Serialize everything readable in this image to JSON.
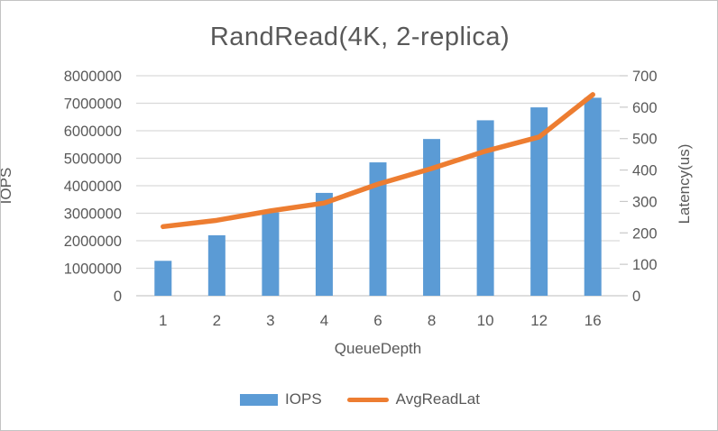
{
  "window": {
    "background": "#ffffff",
    "border_color": "#c3c3c3"
  },
  "chart_data": {
    "type": "bar",
    "subtype": "bar+line combo, dual axis",
    "title": "RandRead(4K, 2-replica)",
    "categories": [
      "1",
      "2",
      "3",
      "4",
      "6",
      "8",
      "10",
      "12",
      "16"
    ],
    "series": [
      {
        "name": "IOPS",
        "type": "bar",
        "axis": "left",
        "color": "#5B9BD5",
        "values": [
          1270000,
          2200000,
          3030000,
          3740000,
          4850000,
          5700000,
          6380000,
          6850000,
          7200000
        ]
      },
      {
        "name": "AvgReadLat",
        "type": "line",
        "axis": "right",
        "color": "#ED7D31",
        "values": [
          220,
          240,
          270,
          295,
          355,
          405,
          460,
          505,
          640
        ]
      }
    ],
    "x_axis": {
      "title": "QueueDepth"
    },
    "left_axis": {
      "title": "IOPS",
      "min": 0,
      "max": 8000000,
      "step": 1000000
    },
    "right_axis": {
      "title": "Latency(us)",
      "min": 0,
      "max": 700,
      "step": 100
    },
    "grid": true,
    "legend_position": "bottom"
  },
  "legend": {
    "items": [
      {
        "label": "IOPS",
        "marker": "bar-swatch",
        "color": "#5B9BD5"
      },
      {
        "label": "AvgReadLat",
        "marker": "line-swatch",
        "color": "#ED7D31"
      }
    ]
  },
  "colors": {
    "grid": "#D9D9D9",
    "baseline": "#C9C9C9",
    "tick": "#C9C9C9",
    "axis_text": "#595959",
    "title_text": "#595959"
  }
}
